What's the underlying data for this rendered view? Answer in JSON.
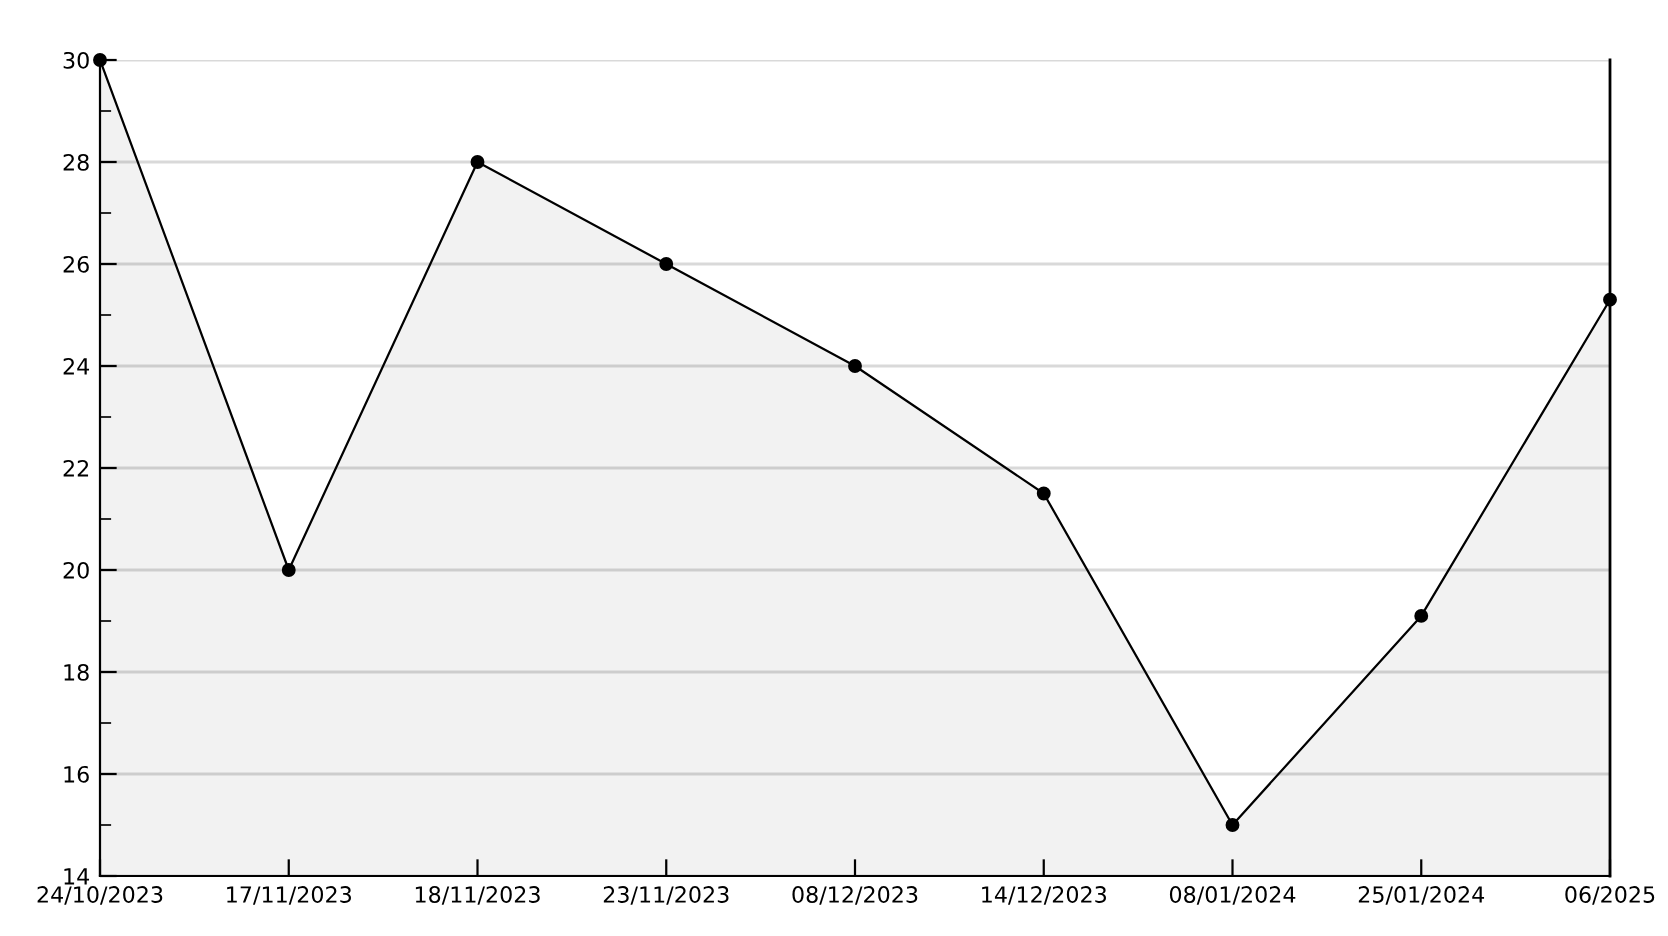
{
  "chart_data": {
    "type": "area",
    "categories": [
      "24/10/2023",
      "17/11/2023",
      "18/11/2023",
      "23/11/2023",
      "08/12/2023",
      "14/12/2023",
      "08/01/2024",
      "25/01/2024",
      "06/2025"
    ],
    "series": [
      {
        "color": "#000000",
        "values": [
          30,
          20,
          28,
          26,
          24,
          21.5,
          15,
          19.1,
          25.3
        ]
      }
    ],
    "ylim": [
      14,
      30
    ],
    "yticks": [
      14,
      {
        "value": 15,
        "label": null
      },
      16,
      {
        "value": 17,
        "label": null
      },
      18,
      {
        "value": 19,
        "label": null
      },
      20,
      {
        "value": 21,
        "label": null
      },
      22,
      {
        "value": 23,
        "label": null
      },
      24,
      {
        "value": 25,
        "label": null
      },
      26,
      {
        "value": 27,
        "label": null
      },
      28,
      {
        "value": 29,
        "label": null
      },
      30
    ],
    "grid": "y",
    "marker": "circle",
    "line_style": "solid",
    "legend": false
  }
}
